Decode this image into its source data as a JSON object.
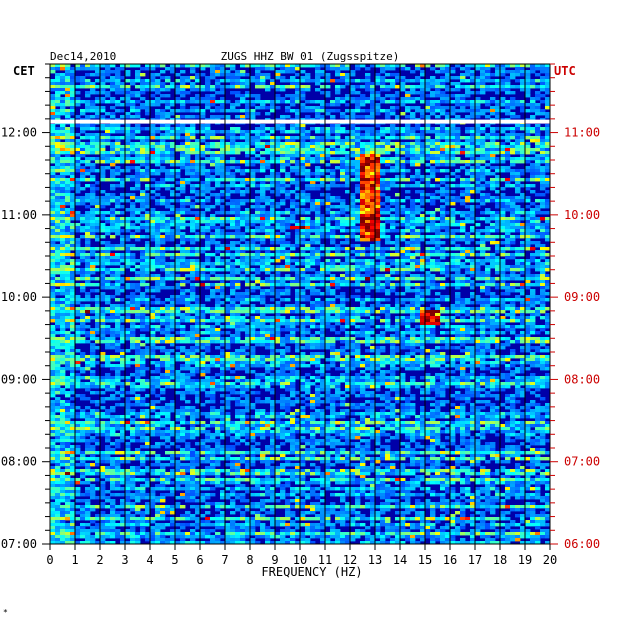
{
  "header": {
    "date": "Dec14,2010",
    "station": "ZUGS HHZ BW 01 (Zugsspitze)",
    "left_zone": "CET",
    "right_zone": "UTC"
  },
  "colors": {
    "background_spectrogram": "#0000a8",
    "grid": "#000000",
    "utc_text": "#cc0000",
    "axis_text": "#000000",
    "gap_band": "#ffffff"
  },
  "chart_data": {
    "type": "heatmap",
    "title": "ZUGS HHZ BW 01 (Zugsspitze)",
    "xlabel": "FREQUENCY (HZ)",
    "ylabel": "",
    "xlim": [
      0,
      20
    ],
    "x_ticks": [
      "0",
      "1",
      "2",
      "3",
      "4",
      "5",
      "6",
      "7",
      "8",
      "9",
      "10",
      "11",
      "12",
      "13",
      "14",
      "15",
      "16",
      "17",
      "18",
      "19",
      "20"
    ],
    "y_ticks_left": [
      "12:00",
      "11:00",
      "10:00",
      "09:00",
      "08:00",
      "07:00"
    ],
    "y_ticks_right": [
      "11:00",
      "10:00",
      "09:00",
      "08:00",
      "07:00",
      "06:00"
    ],
    "time_range_cet": [
      "07:00",
      "12:50"
    ],
    "data_gap_cet": "12:08",
    "notable_features": [
      {
        "freq_hz": 12.8,
        "from_cet": "10:40",
        "to_cet": "11:45",
        "level": "high"
      },
      {
        "freq_hz": 15.2,
        "from_cet": "09:40",
        "to_cet": "09:50",
        "level": "high"
      },
      {
        "freq_hz": 10.0,
        "from_cet": "10:50",
        "to_cet": "10:52",
        "level": "high"
      }
    ]
  },
  "footnote": "*"
}
